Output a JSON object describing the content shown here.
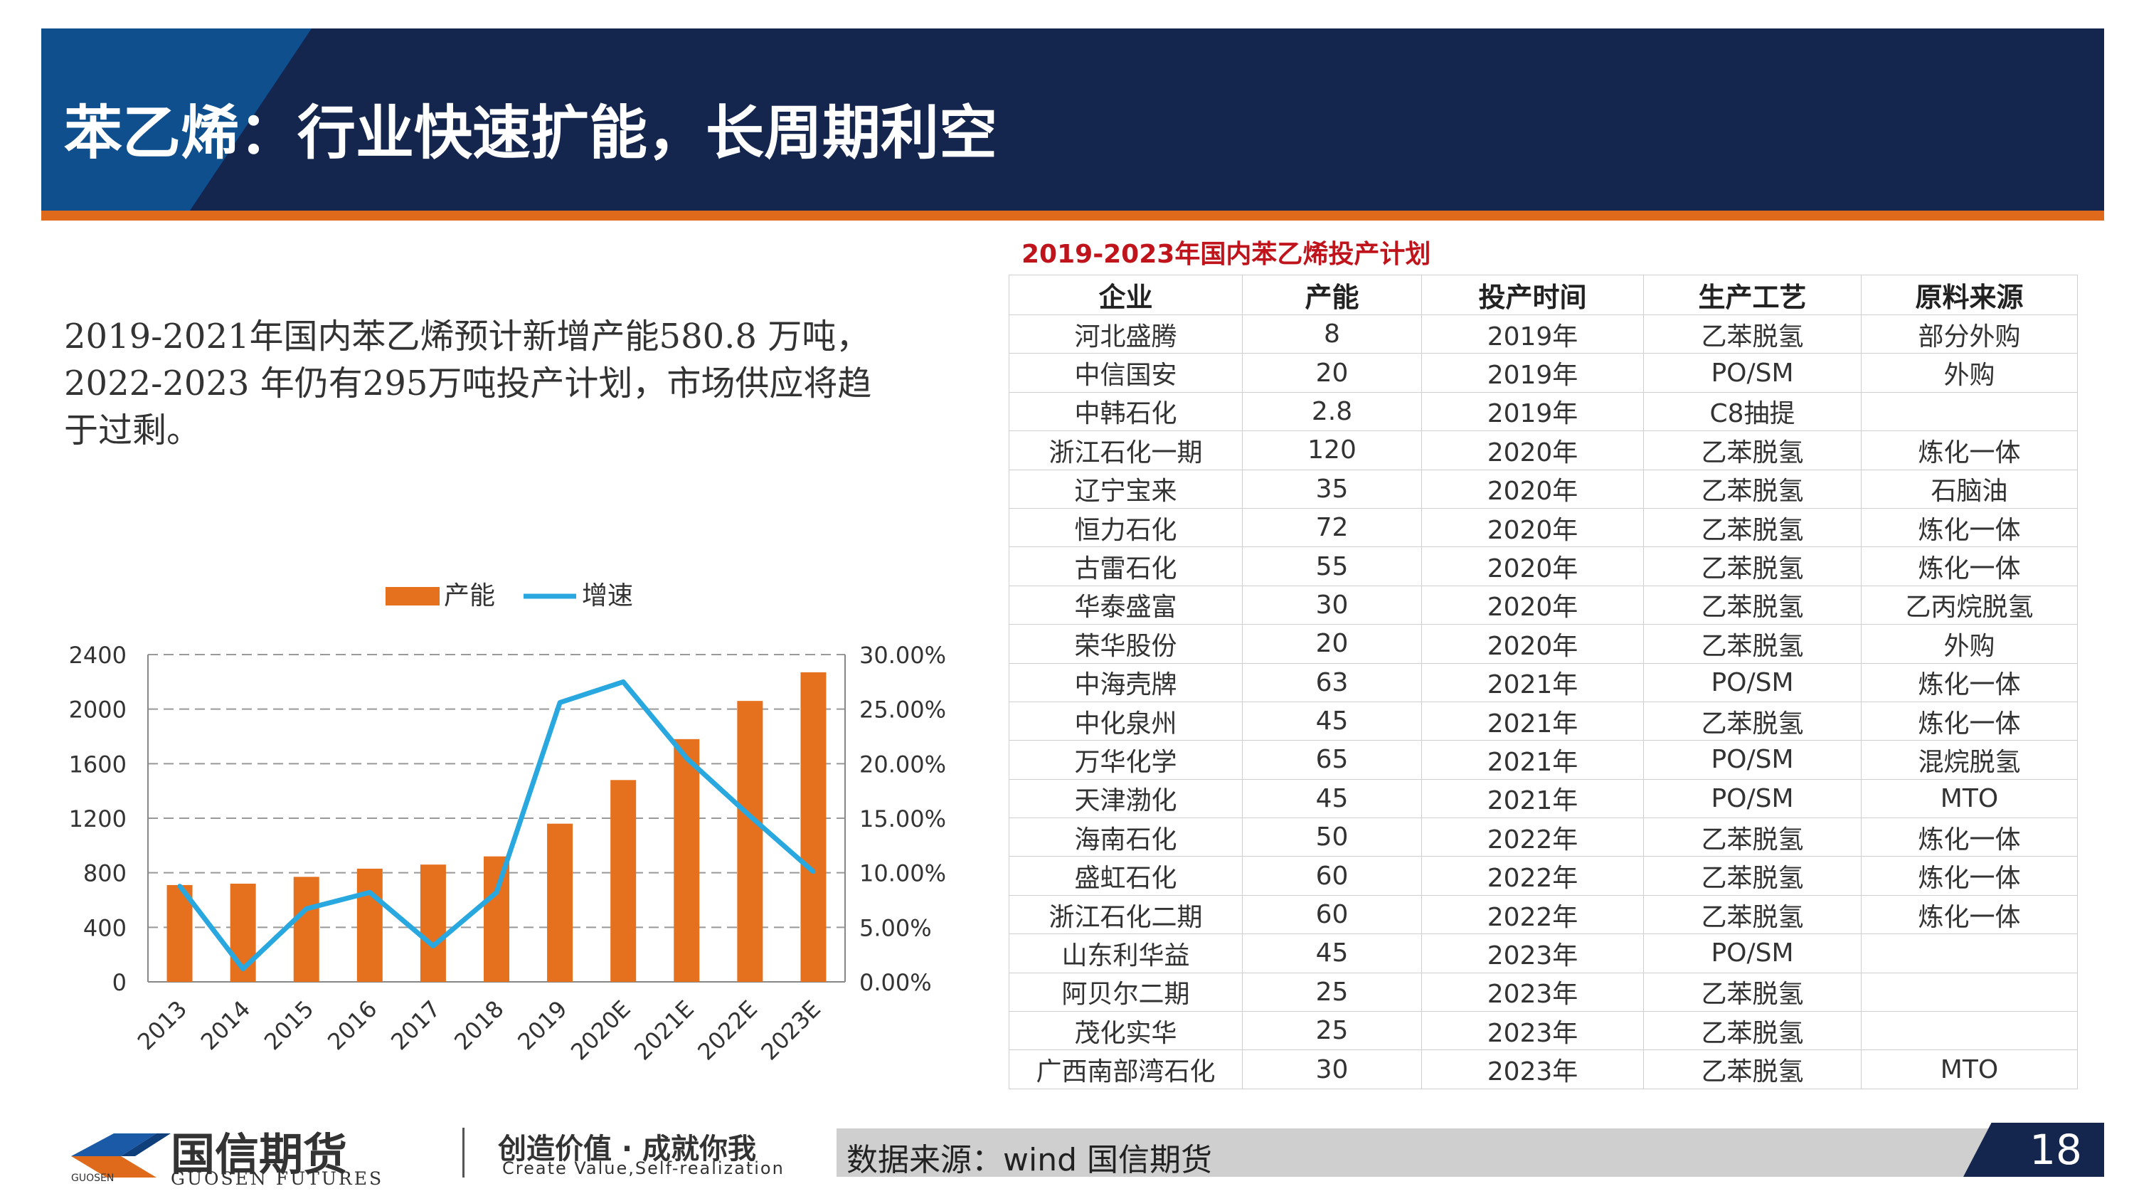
{
  "slide": {
    "title": "苯乙烯：行业快速扩能，长周期利空",
    "page_number": "18"
  },
  "description": "2019-2021年国内苯乙烯预计新增产能580.8 万吨，2022-2023 年仍有295万吨投产计划，市场供应将趋于过剩。",
  "chart_data": {
    "type": "bar",
    "categories": [
      "2013",
      "2014",
      "2015",
      "2016",
      "2017",
      "2018",
      "2019",
      "2020E",
      "2021E",
      "2022E",
      "2023E"
    ],
    "series": [
      {
        "name": "产能",
        "type": "bar",
        "axis": "left",
        "values": [
          710,
          720,
          770,
          830,
          860,
          920,
          1160,
          1480,
          1780,
          2060,
          2270
        ]
      },
      {
        "name": "增速",
        "type": "line",
        "axis": "right",
        "values": [
          0.088,
          0.012,
          0.067,
          0.082,
          0.033,
          0.082,
          0.256,
          0.275,
          0.205,
          0.152,
          0.101
        ]
      }
    ],
    "y_left": {
      "min": 0,
      "max": 2400,
      "ticks": [
        "0",
        "400",
        "800",
        "1200",
        "1600",
        "2000",
        "2400"
      ]
    },
    "y_right": {
      "min": 0,
      "max": 0.3,
      "ticks": [
        "0.00%",
        "5.00%",
        "10.00%",
        "15.00%",
        "20.00%",
        "25.00%",
        "30.00%"
      ]
    },
    "grid": "horizontal dashed",
    "legend_position": "top",
    "colors": {
      "bar": "#e5701e",
      "line": "#29a8e0"
    }
  },
  "table": {
    "title": "2019-2023年国内苯乙烯投产计划",
    "headers": [
      "企业",
      "产能",
      "投产时间",
      "生产工艺",
      "原料来源"
    ],
    "rows": [
      [
        "河北盛腾",
        "8",
        "2019年",
        "乙苯脱氢",
        "部分外购"
      ],
      [
        "中信国安",
        "20",
        "2019年",
        "PO/SM",
        "外购"
      ],
      [
        "中韩石化",
        "2.8",
        "2019年",
        "C8抽提",
        ""
      ],
      [
        "浙江石化一期",
        "120",
        "2020年",
        "乙苯脱氢",
        "炼化一体"
      ],
      [
        "辽宁宝来",
        "35",
        "2020年",
        "乙苯脱氢",
        "石脑油"
      ],
      [
        "恒力石化",
        "72",
        "2020年",
        "乙苯脱氢",
        "炼化一体"
      ],
      [
        "古雷石化",
        "55",
        "2020年",
        "乙苯脱氢",
        "炼化一体"
      ],
      [
        "华泰盛富",
        "30",
        "2020年",
        "乙苯脱氢",
        "乙丙烷脱氢"
      ],
      [
        "荣华股份",
        "20",
        "2020年",
        "乙苯脱氢",
        "外购"
      ],
      [
        "中海壳牌",
        "63",
        "2021年",
        "PO/SM",
        "炼化一体"
      ],
      [
        "中化泉州",
        "45",
        "2021年",
        "乙苯脱氢",
        "炼化一体"
      ],
      [
        "万华化学",
        "65",
        "2021年",
        "PO/SM",
        "混烷脱氢"
      ],
      [
        "天津渤化",
        "45",
        "2021年",
        "PO/SM",
        "MTO"
      ],
      [
        "海南石化",
        "50",
        "2022年",
        "乙苯脱氢",
        "炼化一体"
      ],
      [
        "盛虹石化",
        "60",
        "2022年",
        "乙苯脱氢",
        "炼化一体"
      ],
      [
        "浙江石化二期",
        "60",
        "2022年",
        "乙苯脱氢",
        "炼化一体"
      ],
      [
        "山东利华益",
        "45",
        "2023年",
        "PO/SM",
        ""
      ],
      [
        "阿贝尔二期",
        "25",
        "2023年",
        "乙苯脱氢",
        ""
      ],
      [
        "茂化实华",
        "25",
        "2023年",
        "乙苯脱氢",
        ""
      ],
      [
        "广西南部湾石化",
        "30",
        "2023年",
        "乙苯脱氢",
        "MTO"
      ]
    ]
  },
  "footer": {
    "source": "数据来源：wind  国信期货",
    "logo_cn": "国信期货",
    "logo_en": "GUOSEN FUTURES",
    "logo_small": "GUOSEN",
    "slogan": "创造价值 · 成就你我",
    "slogan_en": "Create Value,Self-realization"
  }
}
